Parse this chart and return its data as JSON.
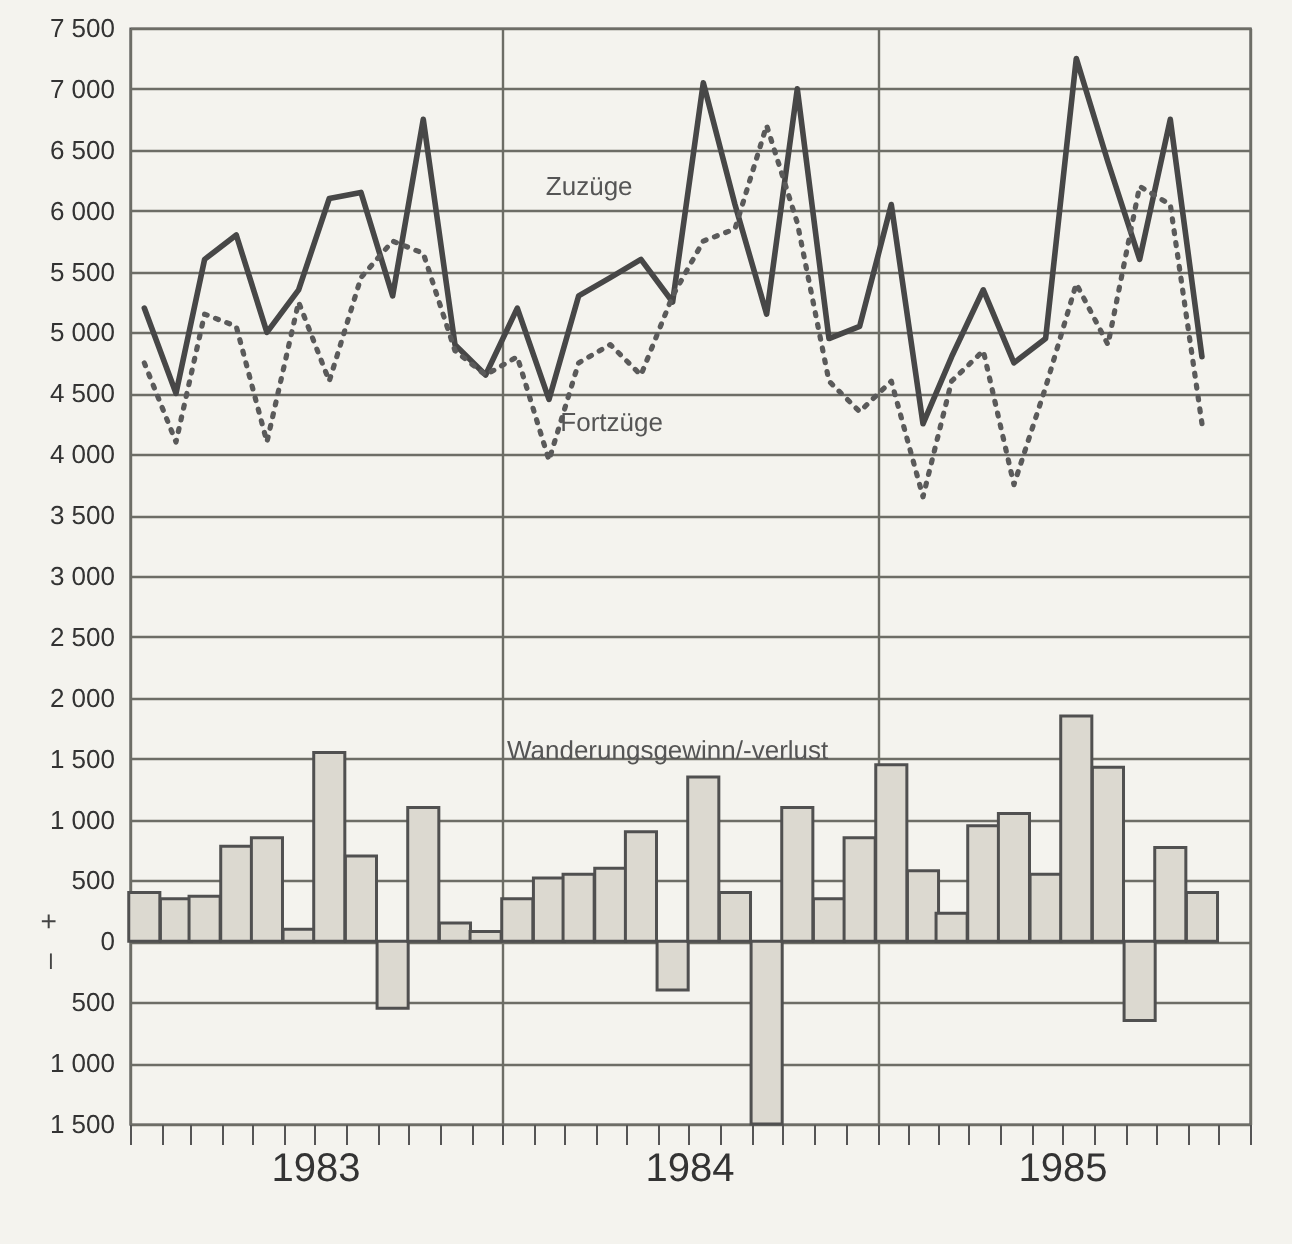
{
  "chart_data": {
    "type": "line",
    "x": [
      "1983-01-15",
      "1983-02-15",
      "1983-03-15",
      "1983-04-15",
      "1983-05-15",
      "1983-06-15",
      "1983-07-15",
      "1983-08-15",
      "1983-09-15",
      "1983-10-15",
      "1983-11-15",
      "1983-12-15",
      "1984-01-15",
      "1984-02-15",
      "1984-03-15",
      "1984-04-15",
      "1984-05-15",
      "1984-06-15",
      "1984-07-15",
      "1984-08-15",
      "1984-09-15",
      "1984-10-15",
      "1984-11-15",
      "1984-12-15",
      "1985-01-15",
      "1985-02-15",
      "1985-03-15",
      "1985-04-15",
      "1985-05-15",
      "1985-06-15",
      "1985-07-15",
      "1985-08-15",
      "1985-09-15",
      "1985-10-15",
      "1985-11-15"
    ],
    "series": [
      {
        "name": "Wanderungsgewinn/-verlust",
        "type": "bar",
        "color": "#dcd9d0",
        "values": [
          400,
          350,
          370,
          780,
          850,
          100,
          1550,
          700,
          -550,
          1100,
          150,
          80,
          350,
          520,
          550,
          600,
          900,
          -400,
          1350,
          400,
          -1500,
          1100,
          350,
          850,
          1450,
          580,
          230,
          950,
          1050,
          550,
          1850,
          1430,
          -650,
          770,
          400
        ]
      },
      {
        "name": "Zuzüge",
        "line_style": "solid",
        "color": "#474747",
        "values": [
          5200,
          4500,
          5600,
          5800,
          5000,
          5350,
          6100,
          6150,
          5300,
          6750,
          4900,
          4650,
          5200,
          4450,
          5300,
          5450,
          5600,
          5250,
          7050,
          6050,
          5150,
          7000,
          4950,
          5050,
          6050,
          4250,
          4800,
          5350,
          4750,
          4950,
          7250,
          6400,
          5600,
          6750,
          4800
        ]
      },
      {
        "name": "Fortzüge",
        "line_style": "dotted",
        "color": "#5a5a5a",
        "values": [
          4750,
          4100,
          5150,
          5050,
          4100,
          5250,
          4600,
          5450,
          5750,
          5650,
          4850,
          4650,
          4800,
          3950,
          4750,
          4900,
          4650,
          5300,
          5750,
          5850,
          6700,
          5900,
          4600,
          4350,
          4600,
          3650,
          4600,
          4850,
          3750,
          4550,
          5400,
          4900,
          6200,
          6050,
          4250
        ]
      }
    ],
    "annotations": [
      "+",
      "–"
    ],
    "xlim": [
      "1983-01",
      "1986-01"
    ],
    "xticks": [
      {
        "value": "1983-01",
        "label": null
      },
      {
        "value": "1983-02",
        "label": null
      },
      {
        "value": "1983-03",
        "label": null
      },
      {
        "value": "1983-04",
        "label": null
      },
      {
        "value": "1983-05",
        "label": null
      },
      {
        "value": "1983-06",
        "label": null
      },
      {
        "value": "1983-07",
        "label": "1983"
      },
      {
        "value": "1983-08",
        "label": null
      },
      {
        "value": "1983-09",
        "label": null
      },
      {
        "value": "1983-10",
        "label": null
      },
      {
        "value": "1983-11",
        "label": null
      },
      {
        "value": "1983-12",
        "label": null
      },
      {
        "value": "1984-01",
        "label": null
      },
      {
        "value": "1984-02",
        "label": null
      },
      {
        "value": "1984-03",
        "label": null
      },
      {
        "value": "1984-04",
        "label": null
      },
      {
        "value": "1984-05",
        "label": null
      },
      {
        "value": "1984-06",
        "label": null
      },
      {
        "value": "1984-07",
        "label": "1984"
      },
      {
        "value": "1984-08",
        "label": null
      },
      {
        "value": "1984-09",
        "label": null
      },
      {
        "value": "1984-10",
        "label": null
      },
      {
        "value": "1984-11",
        "label": null
      },
      {
        "value": "1984-12",
        "label": null
      },
      {
        "value": "1985-01",
        "label": null
      },
      {
        "value": "1985-02",
        "label": null
      },
      {
        "value": "1985-03",
        "label": null
      },
      {
        "value": "1985-04",
        "label": null
      },
      {
        "value": "1985-05",
        "label": null
      },
      {
        "value": "1985-06",
        "label": null
      },
      {
        "value": "1985-07",
        "label": "1985"
      },
      {
        "value": "1985-08",
        "label": null
      },
      {
        "value": "1985-09",
        "label": null
      },
      {
        "value": "1985-10",
        "label": null
      },
      {
        "value": "1985-11",
        "label": null
      },
      {
        "value": "1985-12",
        "label": null
      },
      {
        "value": "1986-01",
        "label": null
      }
    ],
    "ylim": [
      -1500,
      7500
    ],
    "yticks": [
      {
        "value": -1500,
        "label": "1 500"
      },
      {
        "value": -1000,
        "label": "1 000"
      },
      {
        "value": -500,
        "label": "500"
      },
      {
        "value": 0,
        "label": "0"
      },
      {
        "value": 500,
        "label": "500"
      },
      {
        "value": 1000,
        "label": "1 000"
      },
      {
        "value": 1500,
        "label": "1 500"
      },
      {
        "value": 2000,
        "label": "2 000"
      },
      {
        "value": 2500,
        "label": "2 500"
      },
      {
        "value": 3000,
        "label": "3 000"
      },
      {
        "value": 3500,
        "label": "3 500"
      },
      {
        "value": 4000,
        "label": "4 000"
      },
      {
        "value": 4500,
        "label": "4 500"
      },
      {
        "value": 5000,
        "label": "5 000"
      },
      {
        "value": 5500,
        "label": "5 500"
      },
      {
        "value": 6000,
        "label": "6 000"
      },
      {
        "value": 6500,
        "label": "6 500"
      },
      {
        "value": 7000,
        "label": "7 000"
      },
      {
        "value": 7500,
        "label": "7 500"
      }
    ],
    "grid": true
  }
}
